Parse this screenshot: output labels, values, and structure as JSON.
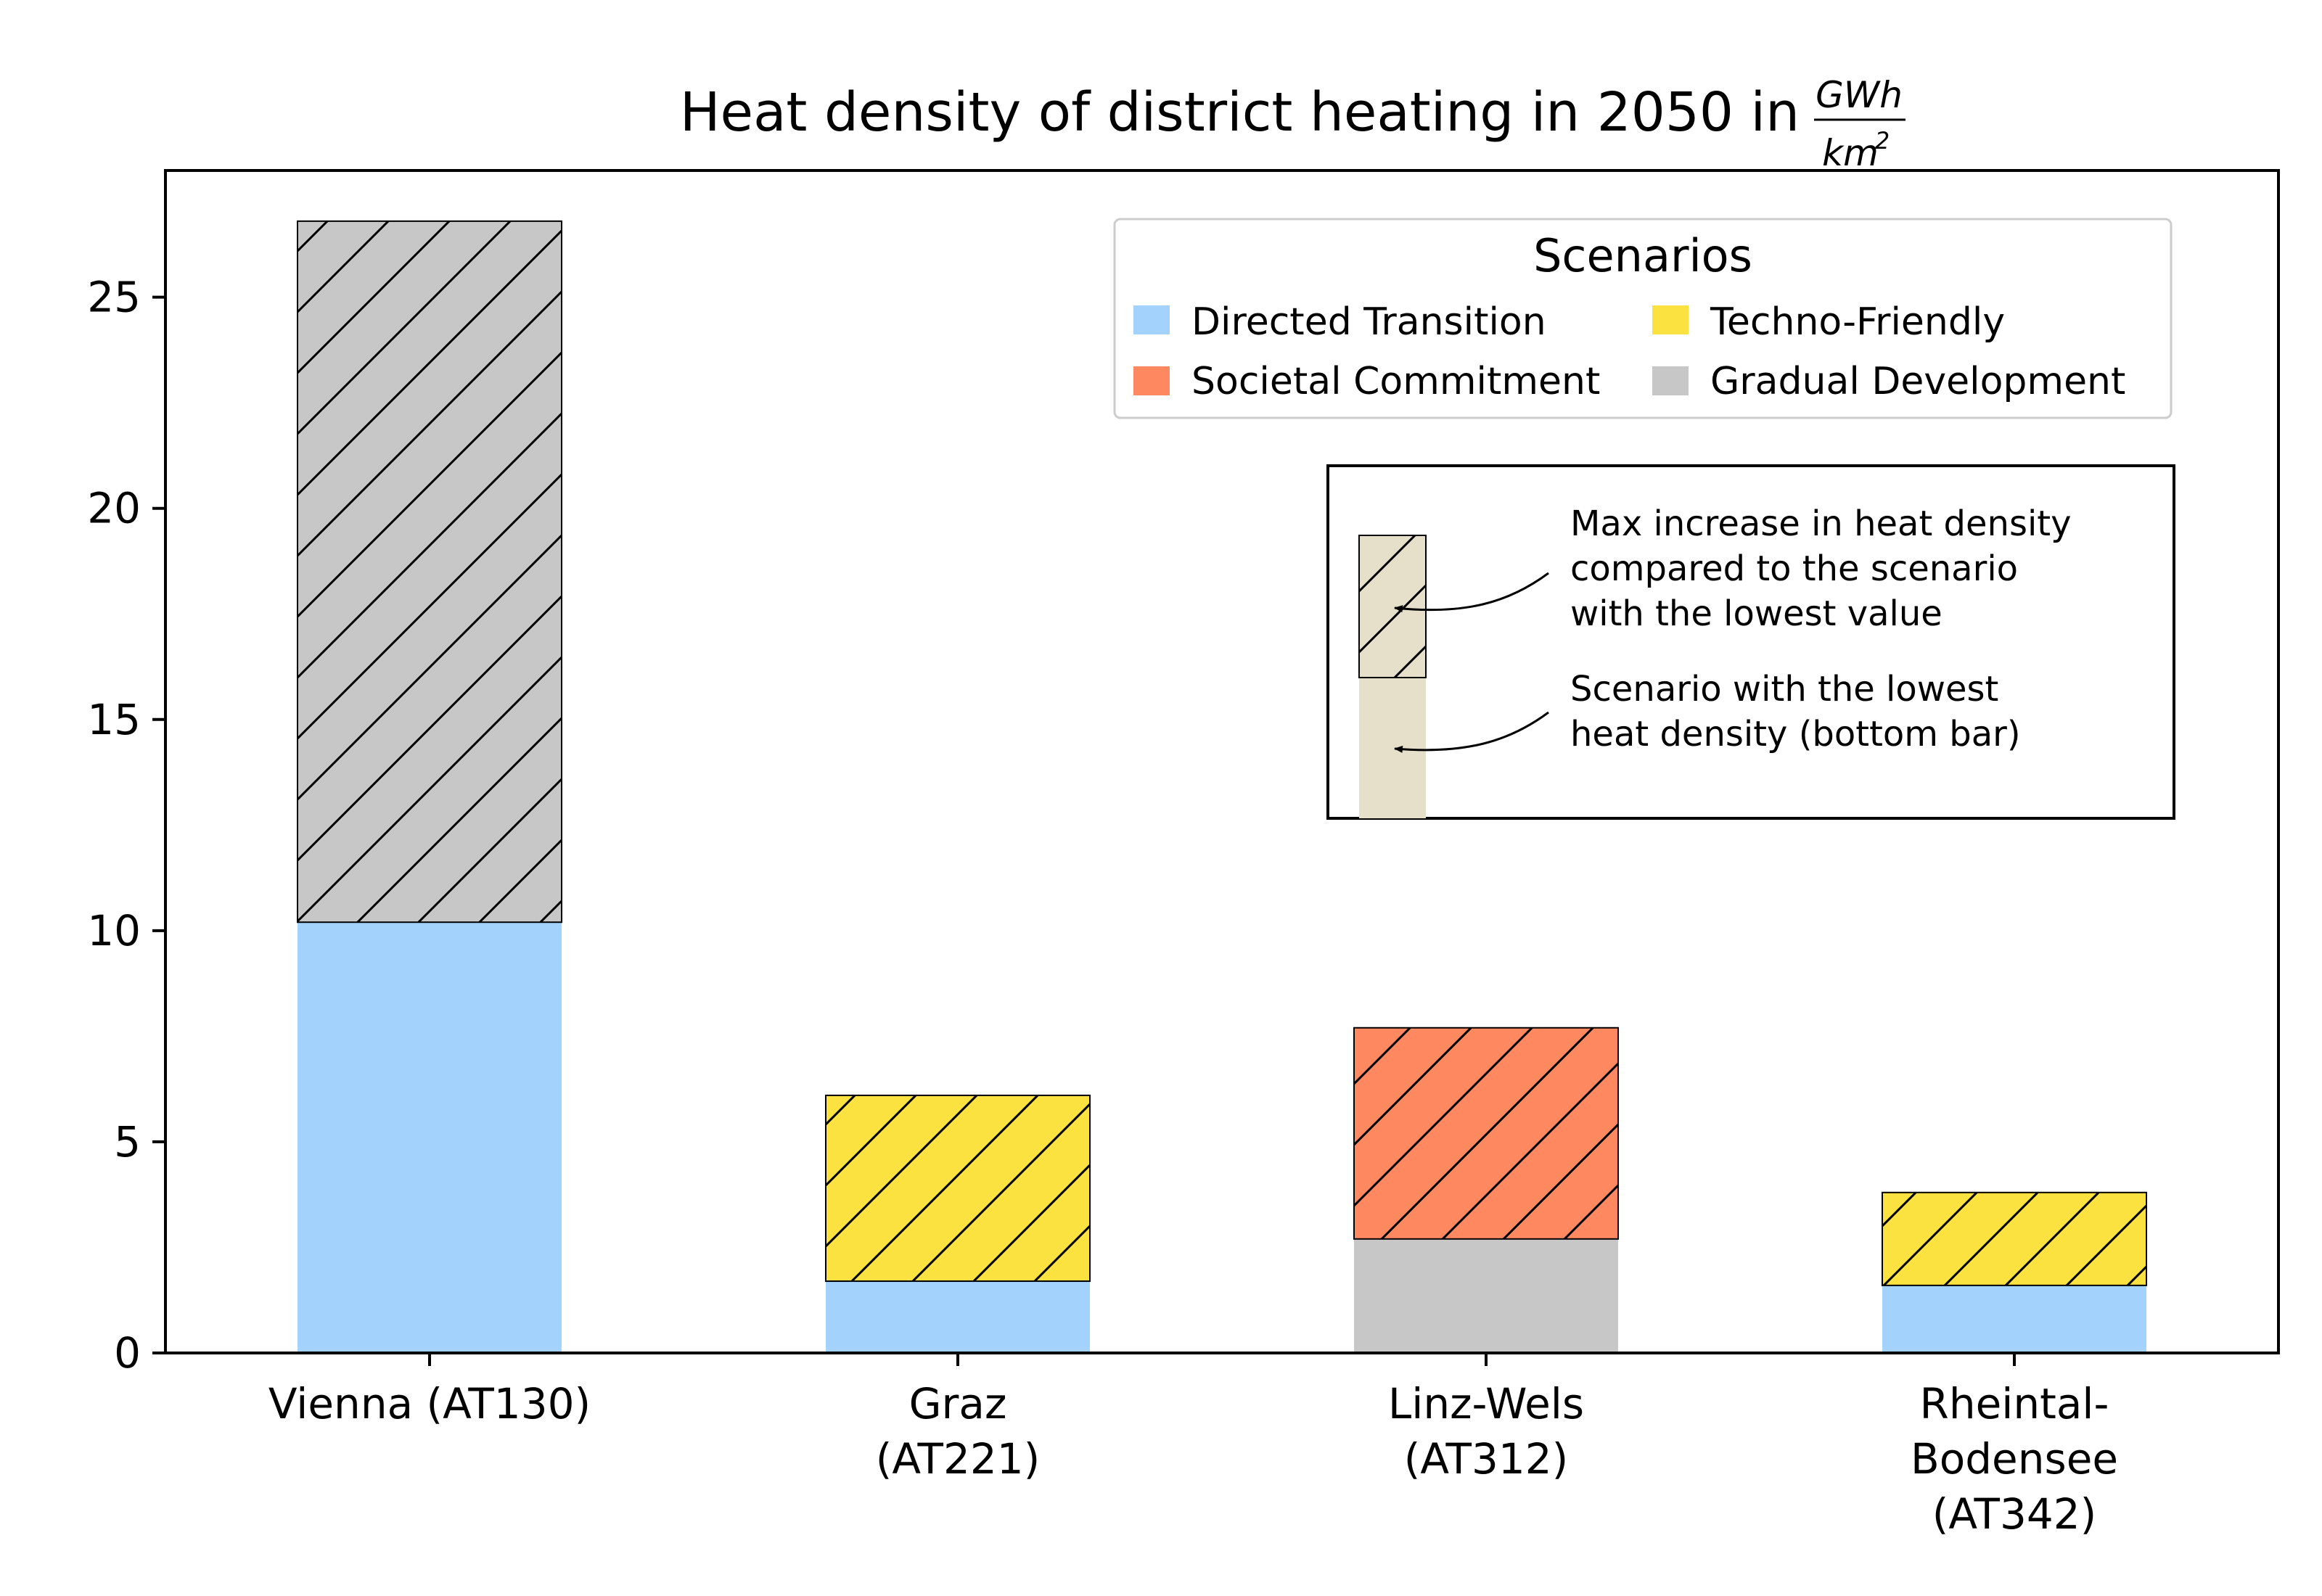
{
  "chart_data": {
    "type": "bar",
    "stacked": true,
    "title": "Heat density of district heating in 2050 in",
    "title_unit": {
      "numerator": "GWh",
      "denominator": "km",
      "denominator_exponent": "2"
    },
    "xlabel": "",
    "ylabel": "",
    "ylim": [
      0,
      28
    ],
    "yticks": [
      0,
      5,
      10,
      15,
      20,
      25
    ],
    "grid": false,
    "categories": [
      [
        "Vienna (AT130)"
      ],
      [
        "Graz",
        "(AT221)"
      ],
      [
        "Linz-Wels",
        "(AT312)"
      ],
      [
        "Rheintal-",
        "Bodensee",
        "(AT342)"
      ]
    ],
    "bars": [
      {
        "base_scenario": "Directed Transition",
        "base_value": 10.2,
        "top_scenario": "Gradual Development",
        "total_value": 26.8
      },
      {
        "base_scenario": "Directed Transition",
        "base_value": 1.7,
        "top_scenario": "Techno-Friendly",
        "total_value": 6.1
      },
      {
        "base_scenario": "Gradual Development",
        "base_value": 2.7,
        "top_scenario": "Societal Commitment",
        "total_value": 7.7
      },
      {
        "base_scenario": "Directed Transition",
        "base_value": 1.6,
        "top_scenario": "Techno-Friendly",
        "total_value": 3.8
      }
    ],
    "legend": {
      "title": "Scenarios",
      "placement": "top-right",
      "entries": [
        {
          "name": "Directed Transition",
          "color": "#a3d2fd"
        },
        {
          "name": "Techno-Friendly",
          "color": "#fbe240"
        },
        {
          "name": "Societal Commitment",
          "color": "#fe885f"
        },
        {
          "name": "Gradual Development",
          "color": "#c8c7c8"
        }
      ]
    },
    "explanation": {
      "top_text": [
        "Max increase in heat density",
        "compared to the scenario",
        "with the lowest value"
      ],
      "bottom_text": [
        "Scenario with the lowest",
        "heat density (bottom bar)"
      ],
      "color": "#e6dfca"
    }
  }
}
